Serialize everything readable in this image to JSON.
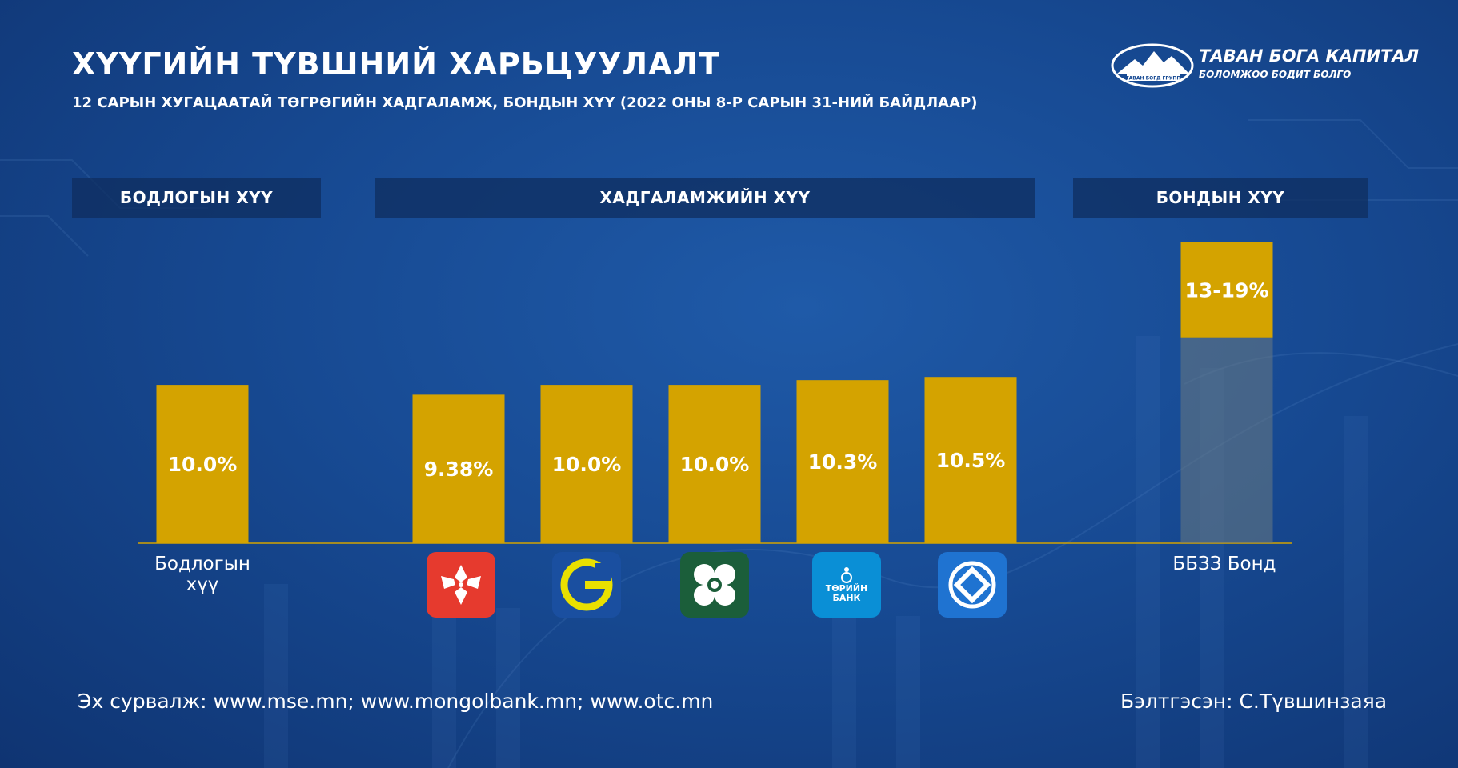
{
  "header": {
    "title": "ХҮҮГИЙН ТҮВШНИЙ ХАРЬЦУУЛАЛТ",
    "subtitle": "12 САРЫН ХУГАЦААТАЙ ТӨГРӨГИЙН ХАДГАЛАМЖ, БОНДЫН ХҮҮ (2022 ОНЫ 8-Р САРЫН 31-НИЙ БАЙДЛААР)"
  },
  "logo": {
    "name": "ТАВАН БОГА КАПИТАЛ",
    "tagline": "БОЛОМЖОО БОДИТ БОЛГО",
    "badge": "ТАВАН БОГД ГРУПП"
  },
  "section_headers": {
    "policy": "БОДЛОГЫН ХҮҮ",
    "deposit": "ХАДГАЛАМЖИЙН ХҮҮ",
    "bond": "БОНДЫН ХҮҮ"
  },
  "chart_data": {
    "type": "bar",
    "categories": [
      "Бодлогын хүү",
      "bank-1",
      "bank-2",
      "bank-3",
      "bank-4",
      "bank-5",
      "ББЗЗ Бонд"
    ],
    "values": [
      10.0,
      9.38,
      10.0,
      10.0,
      10.3,
      10.5,
      19
    ],
    "range_low": [
      null,
      null,
      null,
      null,
      null,
      null,
      13
    ],
    "data_labels": [
      "10.0%",
      "9.38%",
      "10.0%",
      "10.0%",
      "10.3%",
      "10.5%",
      "13-19%"
    ],
    "colors": {
      "bar": "#d4a300",
      "bond_lower": "#6b7a80"
    }
  },
  "categories_display": {
    "policy": "Бодлогын хүү",
    "bond": "ББЗЗ Бонд"
  },
  "bank_icons": [
    {
      "icon": "khan-bank-logo-icon",
      "bg": "#e63a2e"
    },
    {
      "icon": "golomt-bank-logo-icon",
      "bg": "#1a4fa0"
    },
    {
      "icon": "xac-bank-logo-icon",
      "bg": "#1b5e3a"
    },
    {
      "icon": "state-bank-logo-icon",
      "bg": "#0a8fd6",
      "text": "ТӨРИЙН БАНК"
    },
    {
      "icon": "tdb-bank-logo-icon",
      "bg": "#1f73d1"
    }
  ],
  "footer": {
    "source": "Эх сурвалж: www.mse.mn; www.mongolbank.mn; www.otc.mn",
    "author": "Бэлтгэсэн: С.Түвшинзаяа"
  }
}
